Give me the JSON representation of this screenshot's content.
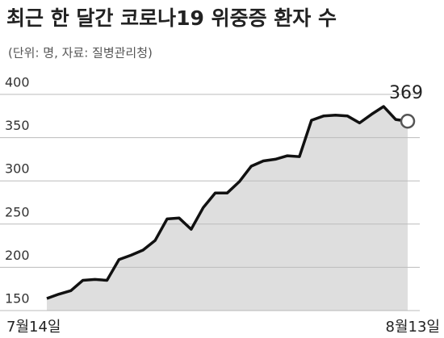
{
  "chart_data": {
    "type": "line",
    "title": "최근 한 달간 코로나19 위중증 환자 수",
    "subtitle": "(단위: 명, 자료: 질병관리청)",
    "categories": [
      "7월14일",
      null,
      null,
      null,
      null,
      null,
      null,
      null,
      null,
      null,
      null,
      null,
      null,
      null,
      null,
      null,
      null,
      null,
      null,
      null,
      null,
      null,
      null,
      null,
      null,
      null,
      null,
      null,
      null,
      null,
      "8월13일"
    ],
    "values": [
      164,
      169,
      173,
      185,
      186,
      185,
      209,
      214,
      220,
      231,
      256,
      257,
      244,
      269,
      286,
      286,
      299,
      317,
      323,
      325,
      329,
      328,
      370,
      375,
      376,
      375,
      367,
      377,
      386,
      371,
      369
    ],
    "color": "#111111",
    "ylim": [
      150,
      400
    ],
    "yticks": [
      150,
      200,
      250,
      300,
      350,
      400
    ],
    "grid": true
  }
}
